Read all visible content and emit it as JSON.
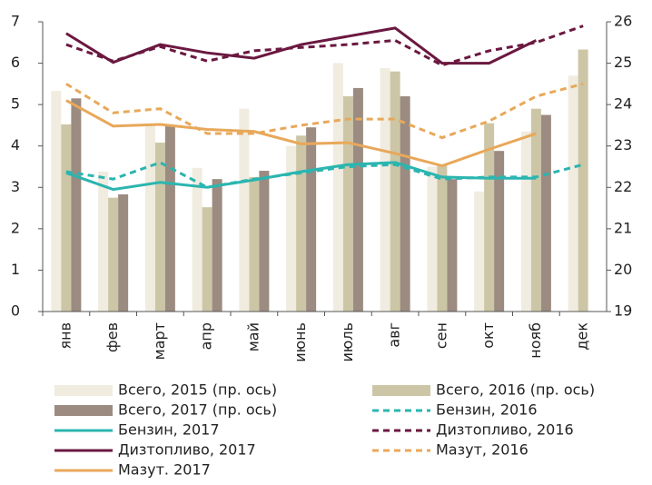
{
  "chart_data": {
    "type": "bar",
    "categories": [
      "янв",
      "фев",
      "март",
      "апр",
      "май",
      "июнь",
      "июль",
      "авг",
      "сен",
      "окт",
      "нояб",
      "дек"
    ],
    "ylim": [
      0,
      7
    ],
    "yticks": [
      0,
      1,
      2,
      3,
      4,
      5,
      6,
      7
    ],
    "y2lim": [
      19,
      26
    ],
    "y2ticks": [
      19,
      20,
      21,
      22,
      23,
      24,
      25,
      26
    ],
    "series": [
      {
        "name": "Всего, 2015 (пр. ось)",
        "type": "bar",
        "axis": "y2",
        "color": "#f0ece0",
        "values": [
          24.33,
          22.38,
          23.5,
          22.47,
          23.9,
          23.0,
          25.0,
          24.88,
          22.5,
          21.9,
          23.35,
          24.7
        ]
      },
      {
        "name": "Всего, 2016 (пр. ось)",
        "type": "bar",
        "axis": "y2",
        "color": "#ccc6a6",
        "values": [
          23.52,
          21.75,
          23.08,
          21.52,
          22.25,
          23.25,
          24.2,
          24.8,
          22.55,
          23.55,
          23.9,
          25.33
        ]
      },
      {
        "name": "Всего, 2017 (пр. ось)",
        "type": "bar",
        "axis": "y2",
        "color": "#9b8b80",
        "values": [
          24.15,
          21.83,
          23.5,
          22.2,
          22.4,
          23.45,
          24.4,
          24.2,
          22.2,
          22.88,
          23.75,
          null
        ]
      },
      {
        "name": "Бензин, 2016",
        "type": "line",
        "dash": true,
        "color": "#2bb5b0",
        "values": [
          3.38,
          3.2,
          3.6,
          3.0,
          3.2,
          3.35,
          3.5,
          3.55,
          3.2,
          3.25,
          3.25,
          3.55
        ]
      },
      {
        "name": "Бензин, 2017",
        "type": "line",
        "dash": false,
        "color": "#2bb5b0",
        "values": [
          3.35,
          2.95,
          3.12,
          3.0,
          3.18,
          3.38,
          3.55,
          3.6,
          3.25,
          3.22,
          3.22,
          null
        ]
      },
      {
        "name": "Дизтопливо, 2016",
        "type": "line",
        "dash": true,
        "color": "#6b1840",
        "values": [
          6.45,
          6.05,
          6.4,
          6.05,
          6.3,
          6.38,
          6.45,
          6.55,
          5.95,
          6.3,
          6.5,
          6.9
        ]
      },
      {
        "name": "Дизтопливо, 2017",
        "type": "line",
        "dash": false,
        "color": "#6b1840",
        "values": [
          6.72,
          6.02,
          6.45,
          6.25,
          6.12,
          6.45,
          6.65,
          6.85,
          6.0,
          6.0,
          6.55,
          null
        ]
      },
      {
        "name": "Мазут, 2016",
        "type": "line",
        "dash": true,
        "color": "#e8a85a",
        "values": [
          5.5,
          4.8,
          4.9,
          4.3,
          4.3,
          4.5,
          4.65,
          4.65,
          4.2,
          4.6,
          5.2,
          5.5
        ]
      },
      {
        "name": "Мазут. 2017",
        "type": "line",
        "dash": false,
        "color": "#e8a85a",
        "values": [
          5.1,
          4.48,
          4.52,
          4.4,
          4.35,
          4.05,
          4.08,
          3.82,
          3.52,
          3.92,
          4.3,
          null
        ]
      }
    ]
  }
}
